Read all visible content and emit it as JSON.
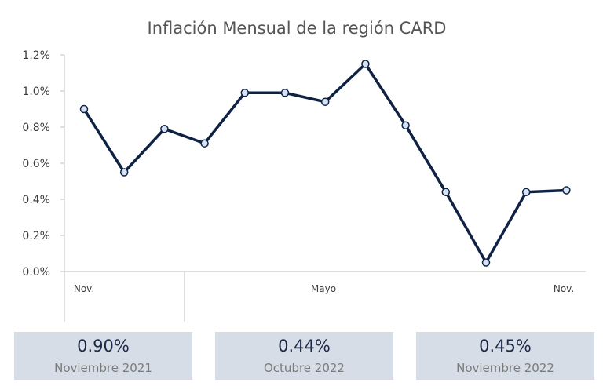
{
  "chart_data": {
    "type": "line",
    "title": "Inflación Mensual de la región CARD",
    "xlabel": "",
    "ylabel": "",
    "x": [
      "2021-11",
      "2021-12",
      "2022-01",
      "2022-02",
      "2022-03",
      "2022-04",
      "2022-05",
      "2022-06",
      "2022-07",
      "2022-08",
      "2022-09",
      "2022-10",
      "2022-11"
    ],
    "series": [
      {
        "values": [
          0.9,
          0.55,
          0.79,
          0.71,
          0.99,
          0.99,
          0.94,
          1.15,
          0.81,
          0.44,
          0.05,
          0.44,
          0.45
        ]
      }
    ],
    "category_labels": [
      {
        "index": 0,
        "text": "Nov."
      },
      {
        "index": 6,
        "text": "Mayo"
      },
      {
        "index": 12,
        "text": "Nov."
      }
    ],
    "y_ticks": [
      "0.0%",
      "0.2%",
      "0.4%",
      "0.6%",
      "0.8%",
      "1.0%",
      "1.2%"
    ],
    "y_tick_values": [
      0,
      0.2,
      0.4,
      0.6,
      0.8,
      1.0,
      1.2
    ],
    "ylim": [
      0,
      1.2
    ],
    "grid": false,
    "legend": "none",
    "colors": {
      "line": "#0f2244",
      "marker_fill": "#d6e3f5",
      "axis": "#bfbfbf"
    }
  },
  "kpis": [
    {
      "value": "0.90%",
      "label": "Noviembre 2021"
    },
    {
      "value": "0.44%",
      "label": "Octubre 2022"
    },
    {
      "value": "0.45%",
      "label": "Noviembre 2022"
    }
  ],
  "colors": {
    "card_bg": "#d7dde6",
    "kpi_value": "#1c2a47",
    "kpi_label": "#7a7a7a"
  }
}
